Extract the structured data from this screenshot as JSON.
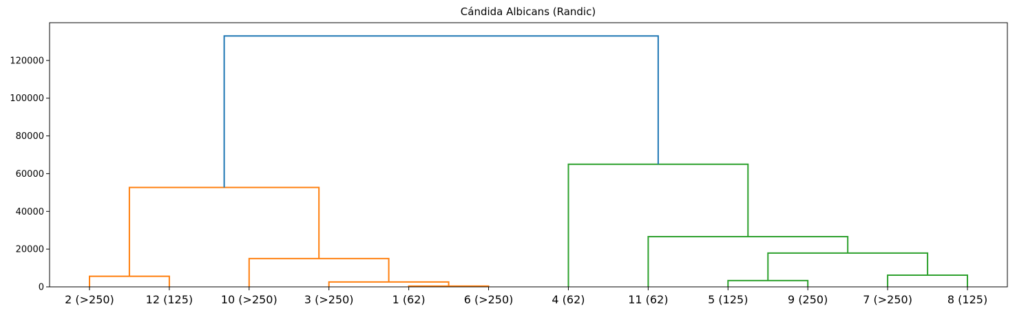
{
  "chart_data": {
    "type": "dendrogram",
    "title": "Cándida Albicans (Randic)",
    "xlabel": "",
    "ylabel": "",
    "ylim": [
      0,
      140000
    ],
    "yticks": [
      0,
      20000,
      40000,
      60000,
      80000,
      100000,
      120000
    ],
    "leaves": [
      "2 (>250)",
      "12 (125)",
      "10 (>250)",
      "3 (>250)",
      "1 (62)",
      "6 (>250)",
      "4 (62)",
      "11 (62)",
      "5 (125)",
      "9 (250)",
      "7 (>250)",
      "8 (125)"
    ],
    "links": [
      {
        "left": 4,
        "right": 5,
        "height": 400,
        "color": "#ff7f0e"
      },
      {
        "left": 3,
        "right": "c0",
        "height": 2600,
        "color": "#ff7f0e"
      },
      {
        "left": 2,
        "right": "c1",
        "height": 15000,
        "color": "#ff7f0e"
      },
      {
        "left": 0,
        "right": 1,
        "height": 5600,
        "color": "#ff7f0e"
      },
      {
        "left": "c3",
        "right": "c2",
        "height": 52700,
        "color": "#ff7f0e"
      },
      {
        "left": 8,
        "right": 9,
        "height": 3300,
        "color": "#2ca02c"
      },
      {
        "left": 10,
        "right": 11,
        "height": 6200,
        "color": "#2ca02c"
      },
      {
        "left": "c5",
        "right": "c6",
        "height": 17900,
        "color": "#2ca02c"
      },
      {
        "left": 7,
        "right": "c7",
        "height": 26600,
        "color": "#2ca02c"
      },
      {
        "left": 6,
        "right": "c8",
        "height": 65000,
        "color": "#2ca02c"
      },
      {
        "left": "c4",
        "right": "c9",
        "height": 133000,
        "color": "#1f77b4"
      }
    ],
    "grid": false,
    "legend": "none"
  }
}
